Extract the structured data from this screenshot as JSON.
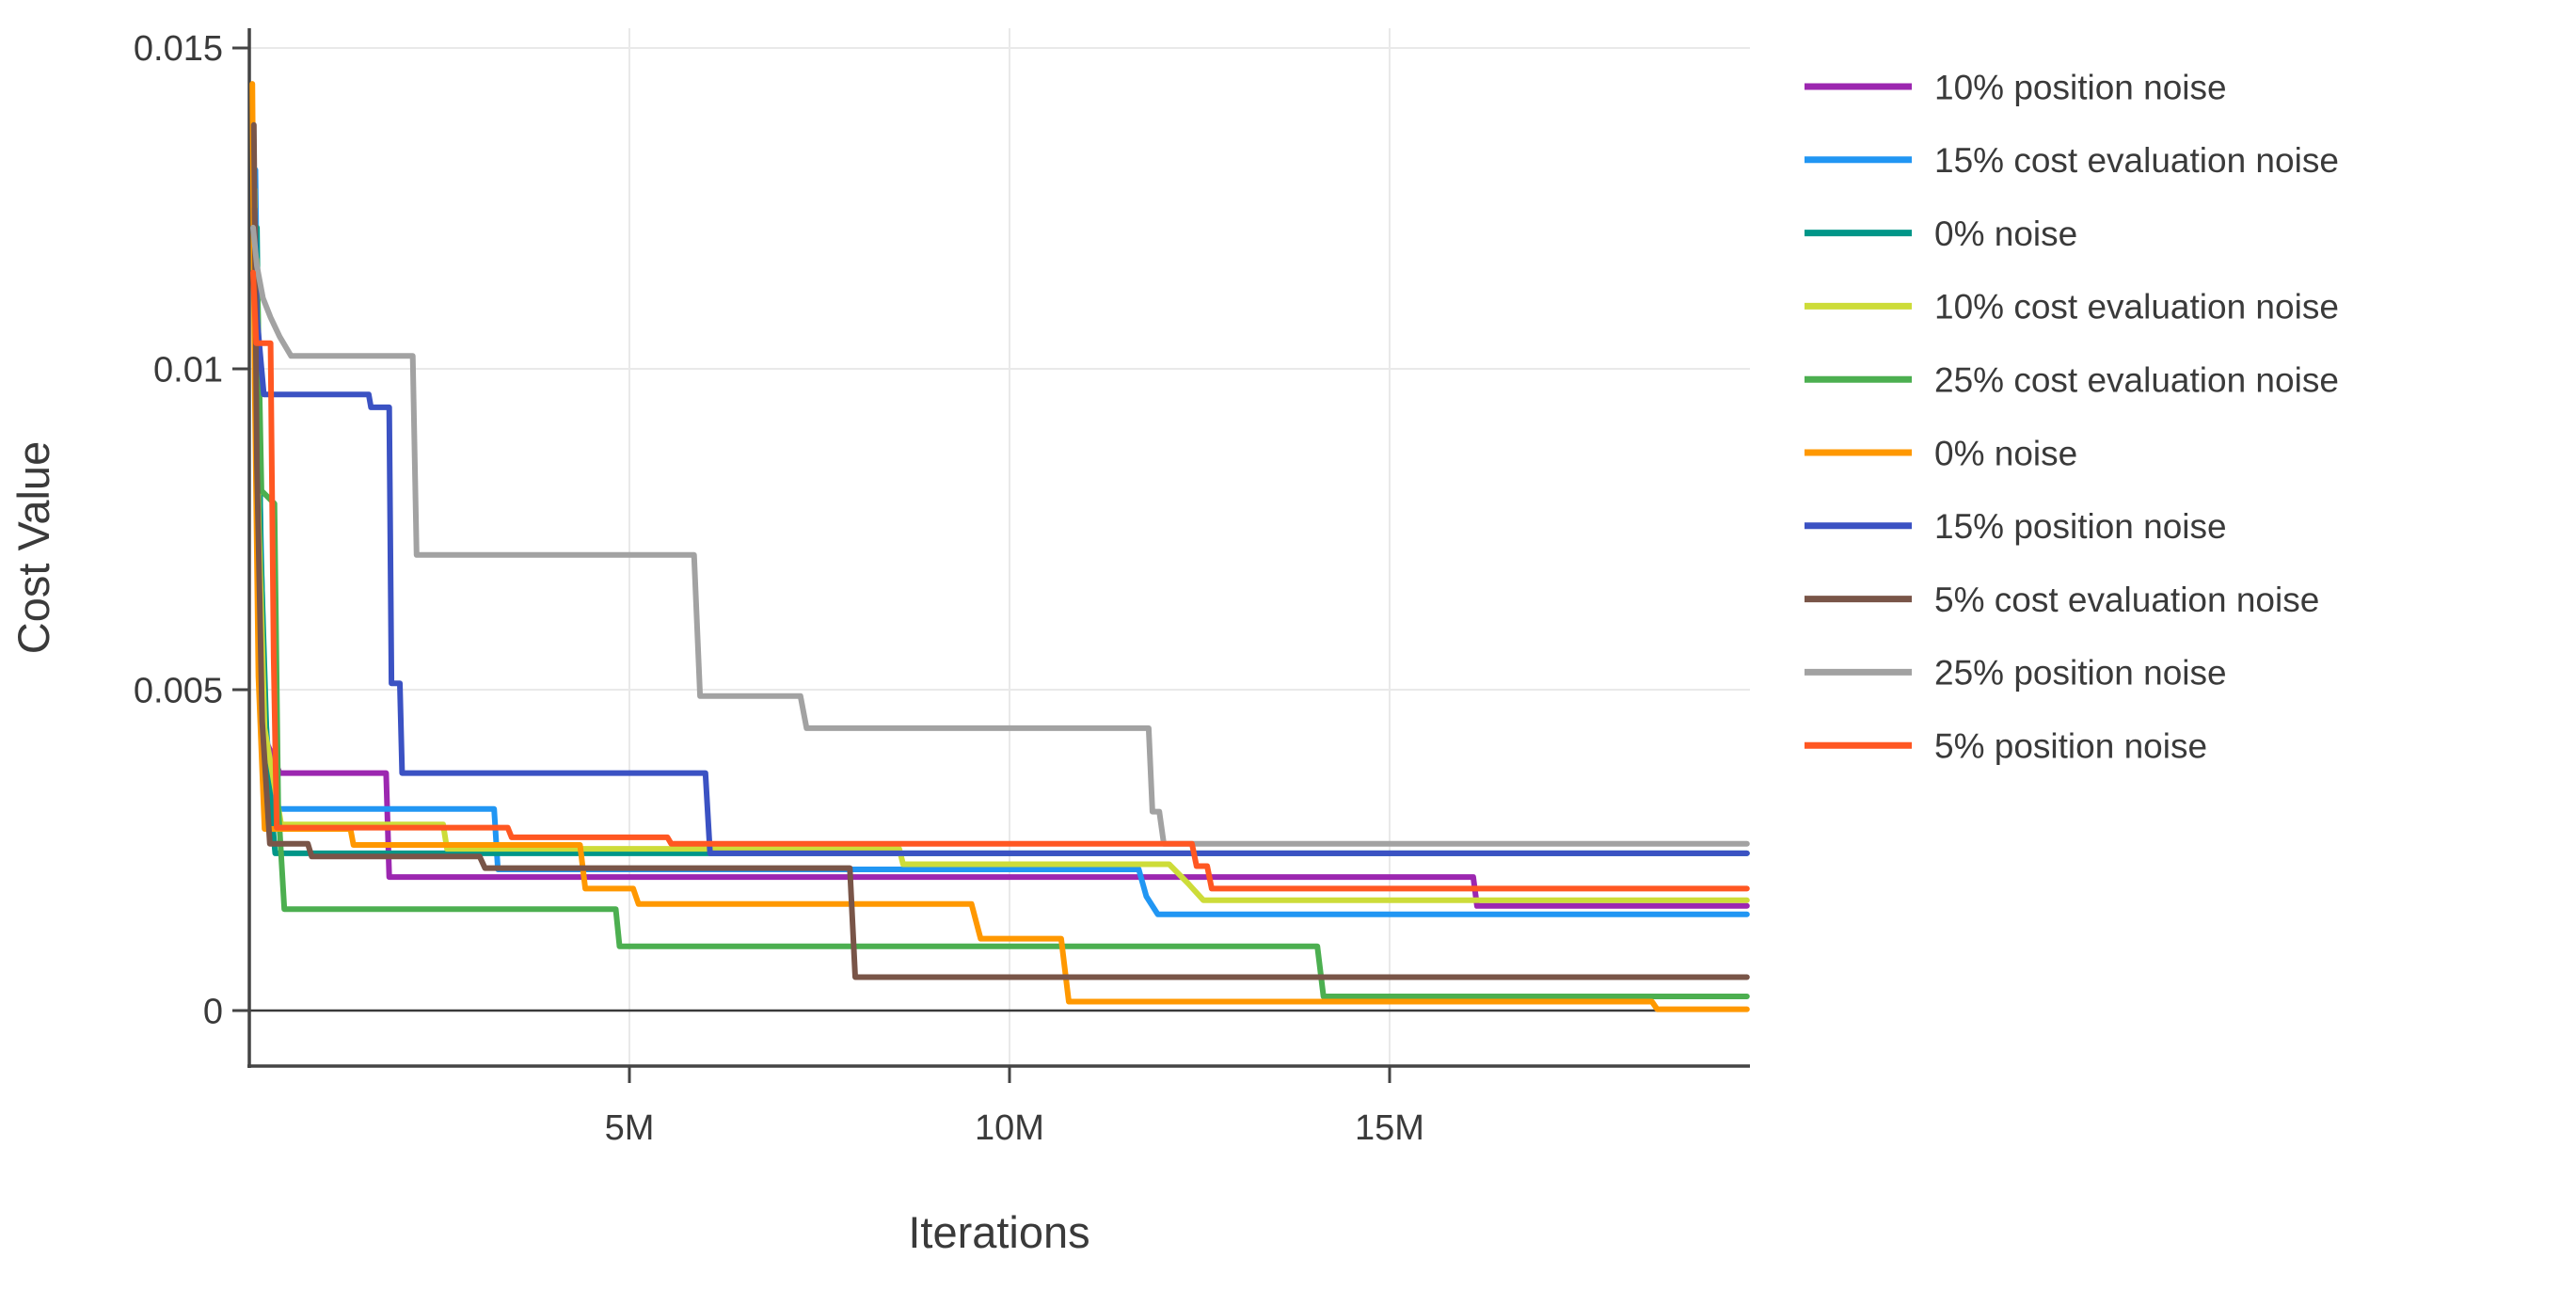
{
  "chart_data": {
    "type": "line",
    "title": "",
    "xlabel": "Iterations",
    "ylabel": "Cost Value",
    "x_unit": "millions of iterations",
    "xlim": [
      0,
      19.74
    ],
    "ylim": [
      -0.000865,
      0.015307
    ],
    "grid": true,
    "zero_line": true,
    "legend_position": "right",
    "x_ticks": {
      "values": [
        5,
        10,
        15
      ],
      "labels": [
        "5M",
        "10M",
        "15M"
      ]
    },
    "y_ticks": {
      "values": [
        0,
        0.005,
        0.01,
        0.015
      ],
      "labels": [
        "0",
        "0.005",
        "0.01",
        "0.015"
      ]
    },
    "series": [
      {
        "name": "10% position noise",
        "color": "#9C27B0",
        "points": [
          [
            0.05,
            0.0134
          ],
          [
            0.08,
            0.0095
          ],
          [
            0.13,
            0.0062
          ],
          [
            0.22,
            0.0042
          ],
          [
            0.4,
            0.0037
          ],
          [
            1.8,
            0.0037
          ],
          [
            1.84,
            0.00208
          ],
          [
            16.1,
            0.00208
          ],
          [
            16.15,
            0.00163
          ],
          [
            19.7,
            0.00163
          ]
        ]
      },
      {
        "name": "15% cost evaluation noise",
        "color": "#2196F3",
        "points": [
          [
            0.08,
            0.0131
          ],
          [
            0.13,
            0.0085
          ],
          [
            0.2,
            0.0048
          ],
          [
            0.3,
            0.00314
          ],
          [
            3.22,
            0.00314
          ],
          [
            3.27,
            0.0022
          ],
          [
            11.7,
            0.0022
          ],
          [
            11.8,
            0.00178
          ],
          [
            11.95,
            0.0015
          ],
          [
            19.7,
            0.0015
          ]
        ]
      },
      {
        "name": "0% noise",
        "color": "#009688",
        "points": [
          [
            0.1,
            0.0122
          ],
          [
            0.15,
            0.0072
          ],
          [
            0.24,
            0.0038
          ],
          [
            0.34,
            0.00245
          ],
          [
            19.7,
            0.00245
          ]
        ]
      },
      {
        "name": "10% cost evaluation noise",
        "color": "#CDDC39",
        "points": [
          [
            0.07,
            0.0128
          ],
          [
            0.12,
            0.0078
          ],
          [
            0.2,
            0.0044
          ],
          [
            0.42,
            0.0029
          ],
          [
            2.55,
            0.0029
          ],
          [
            2.6,
            0.00252
          ],
          [
            8.55,
            0.00252
          ],
          [
            8.6,
            0.00228
          ],
          [
            12.1,
            0.00228
          ],
          [
            12.35,
            0.00198
          ],
          [
            12.55,
            0.00172
          ],
          [
            19.7,
            0.00172
          ]
        ]
      },
      {
        "name": "25% cost evaluation noise",
        "color": "#4CAF50",
        "points": [
          [
            0.1,
            0.0117
          ],
          [
            0.16,
            0.0081
          ],
          [
            0.33,
            0.0079
          ],
          [
            0.38,
            0.0032
          ],
          [
            0.46,
            0.00158
          ],
          [
            4.82,
            0.00158
          ],
          [
            4.87,
            0.001
          ],
          [
            14.05,
            0.001
          ],
          [
            14.13,
            0.00022
          ],
          [
            19.7,
            0.00022
          ]
        ]
      },
      {
        "name": "0% noise",
        "color": "#FF9800",
        "points": [
          [
            0.04,
            0.01444
          ],
          [
            0.07,
            0.0098
          ],
          [
            0.12,
            0.0052
          ],
          [
            0.2,
            0.00283
          ],
          [
            1.33,
            0.00283
          ],
          [
            1.37,
            0.00258
          ],
          [
            4.35,
            0.00258
          ],
          [
            4.42,
            0.0019
          ],
          [
            5.05,
            0.0019
          ],
          [
            5.12,
            0.00166
          ],
          [
            9.5,
            0.00166
          ],
          [
            9.62,
            0.00112
          ],
          [
            10.68,
            0.00112
          ],
          [
            10.78,
            0.00014
          ],
          [
            18.45,
            0.00014
          ],
          [
            18.52,
            2e-05
          ],
          [
            19.7,
            2e-05
          ]
        ]
      },
      {
        "name": "15% position noise",
        "color": "#3B52C3",
        "points": [
          [
            0.07,
            0.0125
          ],
          [
            0.1,
            0.0108
          ],
          [
            0.19,
            0.0096
          ],
          [
            1.57,
            0.0096
          ],
          [
            1.6,
            0.0094
          ],
          [
            1.84,
            0.0094
          ],
          [
            1.87,
            0.0051
          ],
          [
            1.98,
            0.0051
          ],
          [
            2.01,
            0.0037
          ],
          [
            6.0,
            0.0037
          ],
          [
            6.06,
            0.00245
          ],
          [
            19.7,
            0.00245
          ]
        ]
      },
      {
        "name": "5% cost evaluation noise",
        "color": "#795548",
        "points": [
          [
            0.06,
            0.0138
          ],
          [
            0.1,
            0.0085
          ],
          [
            0.17,
            0.0045
          ],
          [
            0.27,
            0.0026
          ],
          [
            0.77,
            0.0026
          ],
          [
            0.82,
            0.0024
          ],
          [
            3.03,
            0.0024
          ],
          [
            3.1,
            0.00222
          ],
          [
            7.9,
            0.00222
          ],
          [
            7.97,
            0.00052
          ],
          [
            19.7,
            0.00052
          ]
        ]
      },
      {
        "name": "25% position noise",
        "color": "#A2A2A2",
        "points": [
          [
            0.05,
            0.0122
          ],
          [
            0.1,
            0.0116
          ],
          [
            0.18,
            0.0111
          ],
          [
            0.28,
            0.0108
          ],
          [
            0.4,
            0.0105
          ],
          [
            0.55,
            0.0102
          ],
          [
            2.15,
            0.0102
          ],
          [
            2.2,
            0.0071
          ],
          [
            5.85,
            0.0071
          ],
          [
            5.93,
            0.0049
          ],
          [
            7.25,
            0.0049
          ],
          [
            7.33,
            0.0044
          ],
          [
            11.83,
            0.0044
          ],
          [
            11.88,
            0.0031
          ],
          [
            11.97,
            0.0031
          ],
          [
            12.03,
            0.0026
          ],
          [
            19.7,
            0.0026
          ]
        ]
      },
      {
        "name": "5% position noise",
        "color": "#FF5722",
        "points": [
          [
            0.05,
            0.0115
          ],
          [
            0.09,
            0.0104
          ],
          [
            0.28,
            0.0104
          ],
          [
            0.32,
            0.0055
          ],
          [
            0.36,
            0.00285
          ],
          [
            3.4,
            0.00285
          ],
          [
            3.45,
            0.0027
          ],
          [
            5.5,
            0.0027
          ],
          [
            5.55,
            0.0026
          ],
          [
            12.4,
            0.0026
          ],
          [
            12.46,
            0.00225
          ],
          [
            12.6,
            0.00225
          ],
          [
            12.66,
            0.0019
          ],
          [
            19.7,
            0.0019
          ]
        ]
      }
    ]
  },
  "colors": {
    "background": "#ffffff",
    "axis_line": "#444444",
    "zero_line": "#3a3a3a",
    "gridline": "#e9e9e9",
    "text": "#3a3a3a"
  }
}
